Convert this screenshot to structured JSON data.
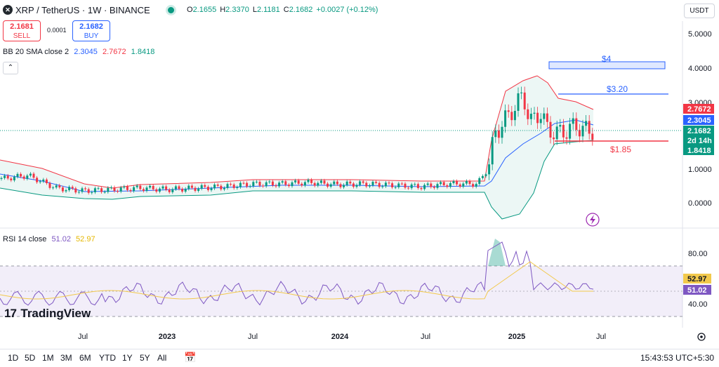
{
  "header": {
    "symbol": "XRP / TetherUS · 1W · BINANCE",
    "icon": "xrp-logo-icon",
    "ohlc": [
      {
        "k": "O",
        "v": "2.1655"
      },
      {
        "k": "H",
        "v": "2.3370"
      },
      {
        "k": "L",
        "v": "2.1181"
      },
      {
        "k": "C",
        "v": "2.1682"
      },
      {
        "k": "",
        "v": "+0.0027 (+0.12%)"
      }
    ],
    "currency": "USDT"
  },
  "trade": {
    "sell_price": "2.1681",
    "sell_label": "SELL",
    "spread": "0.0001",
    "buy_price": "2.1682",
    "buy_label": "BUY"
  },
  "indicators": {
    "bb_label": "BB 20 SMA close 2",
    "bb_basis": "2.3045",
    "bb_upper": "2.7672",
    "bb_lower": "1.8418",
    "rsi_label": "RSI 14 close",
    "rsi_value": "51.02",
    "rsi_ma": "52.97",
    "collapse_icon": "chevron-up-icon"
  },
  "annotations": {
    "level_4": "$4",
    "level_320": "$3.20",
    "level_185": "$1.85"
  },
  "price_axis": [
    "5.0000",
    "4.0000",
    "3.0000",
    "1.0000",
    "0.0000"
  ],
  "price_tags": [
    {
      "label": "2.7672",
      "color": "#f23645"
    },
    {
      "label": "2.3045",
      "color": "#2962ff"
    },
    {
      "label": "2.1682",
      "color": "#089981"
    },
    {
      "label": "2d 14h",
      "color": "#089981"
    },
    {
      "label": "1.8418",
      "color": "#089981"
    }
  ],
  "rsi_axis": [
    "80.00",
    "40.00"
  ],
  "rsi_tags": [
    {
      "label": "52.97",
      "color": "#f2c94c"
    },
    {
      "label": "51.02",
      "color": "#7e57c2"
    }
  ],
  "time_axis": [
    "Jul",
    "2023",
    "Jul",
    "2024",
    "Jul",
    "2025",
    "Jul"
  ],
  "logo": "TradingView",
  "timeframes": [
    "1D",
    "5D",
    "1M",
    "3M",
    "6M",
    "YTD",
    "1Y",
    "5Y",
    "All"
  ],
  "clock": "15:43:53 UTC+5:30",
  "colors": {
    "up": "#089981",
    "down": "#f23645",
    "basis": "#2962ff",
    "rsi": "#7e57c2",
    "rsi_ma": "#f2c94c"
  },
  "chart_data": {
    "type": "candlestick",
    "symbol": "XRP / TetherUS",
    "interval": "1W",
    "price_range": [
      -0.4,
      5.4
    ],
    "series": [
      {
        "name": "BB 20 SMA close 2",
        "values": [
          2.3045,
          2.7672,
          1.8418
        ]
      },
      {
        "name": "RSI 14 close",
        "values": [
          51.02,
          52.97
        ]
      }
    ],
    "levels": [
      4.0,
      3.2,
      1.85
    ]
  }
}
